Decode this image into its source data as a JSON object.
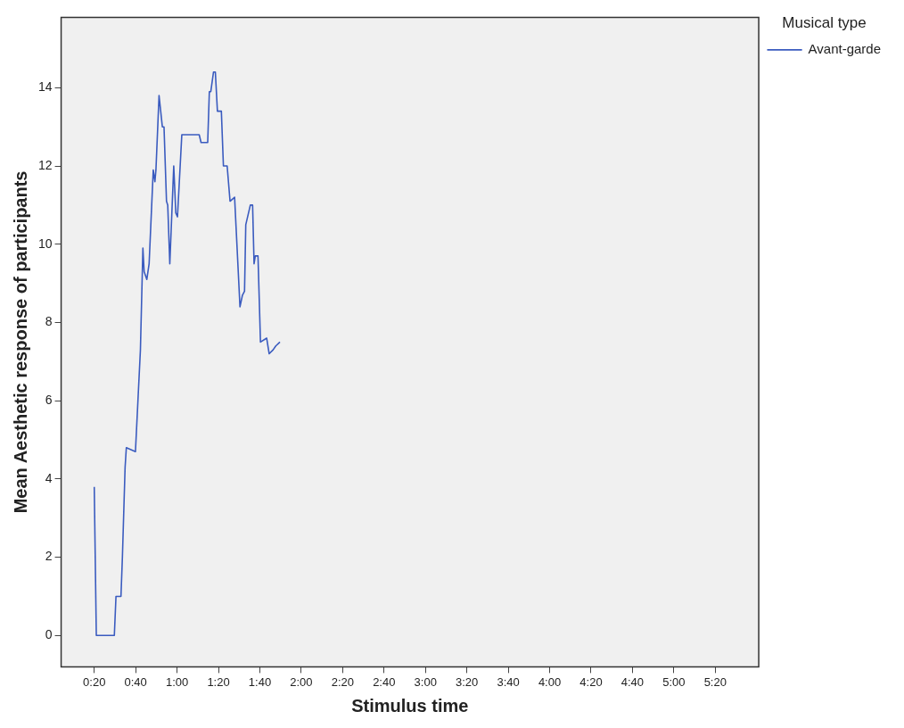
{
  "chart_data": {
    "type": "line",
    "xlabel": "Stimulus time",
    "ylabel": "Mean Aesthetic response of participants",
    "legend_title": "Musical type",
    "xlim": [
      4,
      341
    ],
    "ylim": [
      -0.8,
      15.8
    ],
    "xticks": [
      {
        "value": 20,
        "label": "0:20"
      },
      {
        "value": 40,
        "label": "0:40"
      },
      {
        "value": 60,
        "label": "1:00"
      },
      {
        "value": 80,
        "label": "1:20"
      },
      {
        "value": 100,
        "label": "1:40"
      },
      {
        "value": 120,
        "label": "2:00"
      },
      {
        "value": 140,
        "label": "2:20"
      },
      {
        "value": 160,
        "label": "2:40"
      },
      {
        "value": 180,
        "label": "3:00"
      },
      {
        "value": 200,
        "label": "3:20"
      },
      {
        "value": 220,
        "label": "3:40"
      },
      {
        "value": 240,
        "label": "4:00"
      },
      {
        "value": 260,
        "label": "4:20"
      },
      {
        "value": 280,
        "label": "4:40"
      },
      {
        "value": 300,
        "label": "5:00"
      },
      {
        "value": 320,
        "label": "5:20"
      }
    ],
    "yticks": [
      0,
      2,
      4,
      6,
      8,
      10,
      12,
      14
    ],
    "legend": "top right",
    "marker": "none",
    "line_style": "solid",
    "series": [
      {
        "name": "Avant-garde",
        "color": "#3a5bbf",
        "x": [
          20,
          21,
          29.7,
          30.5,
          32.9,
          33.6,
          34.9,
          35.5,
          39.9,
          41.1,
          42.3,
          43.5,
          44.1,
          45.4,
          46.5,
          48.5,
          49.3,
          49.8,
          51.3,
          52.9,
          53.7,
          54.9,
          55.5,
          56.5,
          58.4,
          59.4,
          60.2,
          62.3,
          70.7,
          71.6,
          74.8,
          75.6,
          76.3,
          77.6,
          78.5,
          79.5,
          81.4,
          82.4,
          84.2,
          85.6,
          87.8,
          90.4,
          91.6,
          92.6,
          93.2,
          95.4,
          96.5,
          97.2,
          97.8,
          99.1,
          100.3,
          103.3,
          104.5,
          106.4,
          107.7,
          109.7
        ],
        "values": [
          3.8,
          0,
          0,
          1.0,
          1.0,
          2.0,
          4.3,
          4.8,
          4.7,
          6.0,
          7.3,
          9.9,
          9.3,
          9.1,
          9.5,
          11.9,
          11.6,
          11.9,
          13.8,
          13.0,
          13.0,
          11.1,
          11.0,
          9.5,
          12.0,
          10.8,
          10.7,
          12.8,
          12.8,
          12.6,
          12.6,
          13.9,
          13.9,
          14.4,
          14.4,
          13.4,
          13.4,
          12.0,
          12.0,
          11.1,
          11.2,
          8.4,
          8.7,
          8.8,
          10.5,
          11.0,
          11.0,
          9.5,
          9.7,
          9.7,
          7.5,
          7.6,
          7.2,
          7.3,
          7.4,
          7.5
        ]
      }
    ]
  }
}
